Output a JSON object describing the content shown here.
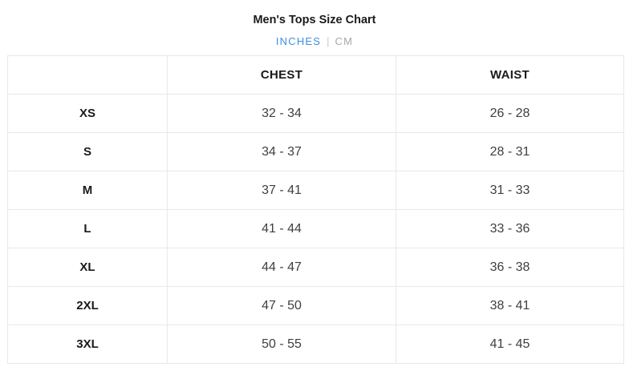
{
  "page": {
    "title": "Men's Tops Size Chart"
  },
  "unit_toggle": {
    "active_unit": "INCHES",
    "inches_label": "INCHES",
    "divider": "|",
    "cm_label": "CM",
    "active_color": "#3e8ede",
    "inactive_color": "#a8a8a8"
  },
  "size_table": {
    "columns": [
      "",
      "CHEST",
      "WAIST"
    ],
    "border_color": "#e8e8e8",
    "rows": [
      {
        "size": "XS",
        "chest": "32 - 34",
        "waist": "26 - 28"
      },
      {
        "size": "S",
        "chest": "34 - 37",
        "waist": "28 - 31"
      },
      {
        "size": "M",
        "chest": "37 - 41",
        "waist": "31 - 33"
      },
      {
        "size": "L",
        "chest": "41 - 44",
        "waist": "33 - 36"
      },
      {
        "size": "XL",
        "chest": "44 - 47",
        "waist": "36 - 38"
      },
      {
        "size": "2XL",
        "chest": "47 - 50",
        "waist": "38 - 41"
      },
      {
        "size": "3XL",
        "chest": "50 - 55",
        "waist": "41 - 45"
      }
    ]
  }
}
